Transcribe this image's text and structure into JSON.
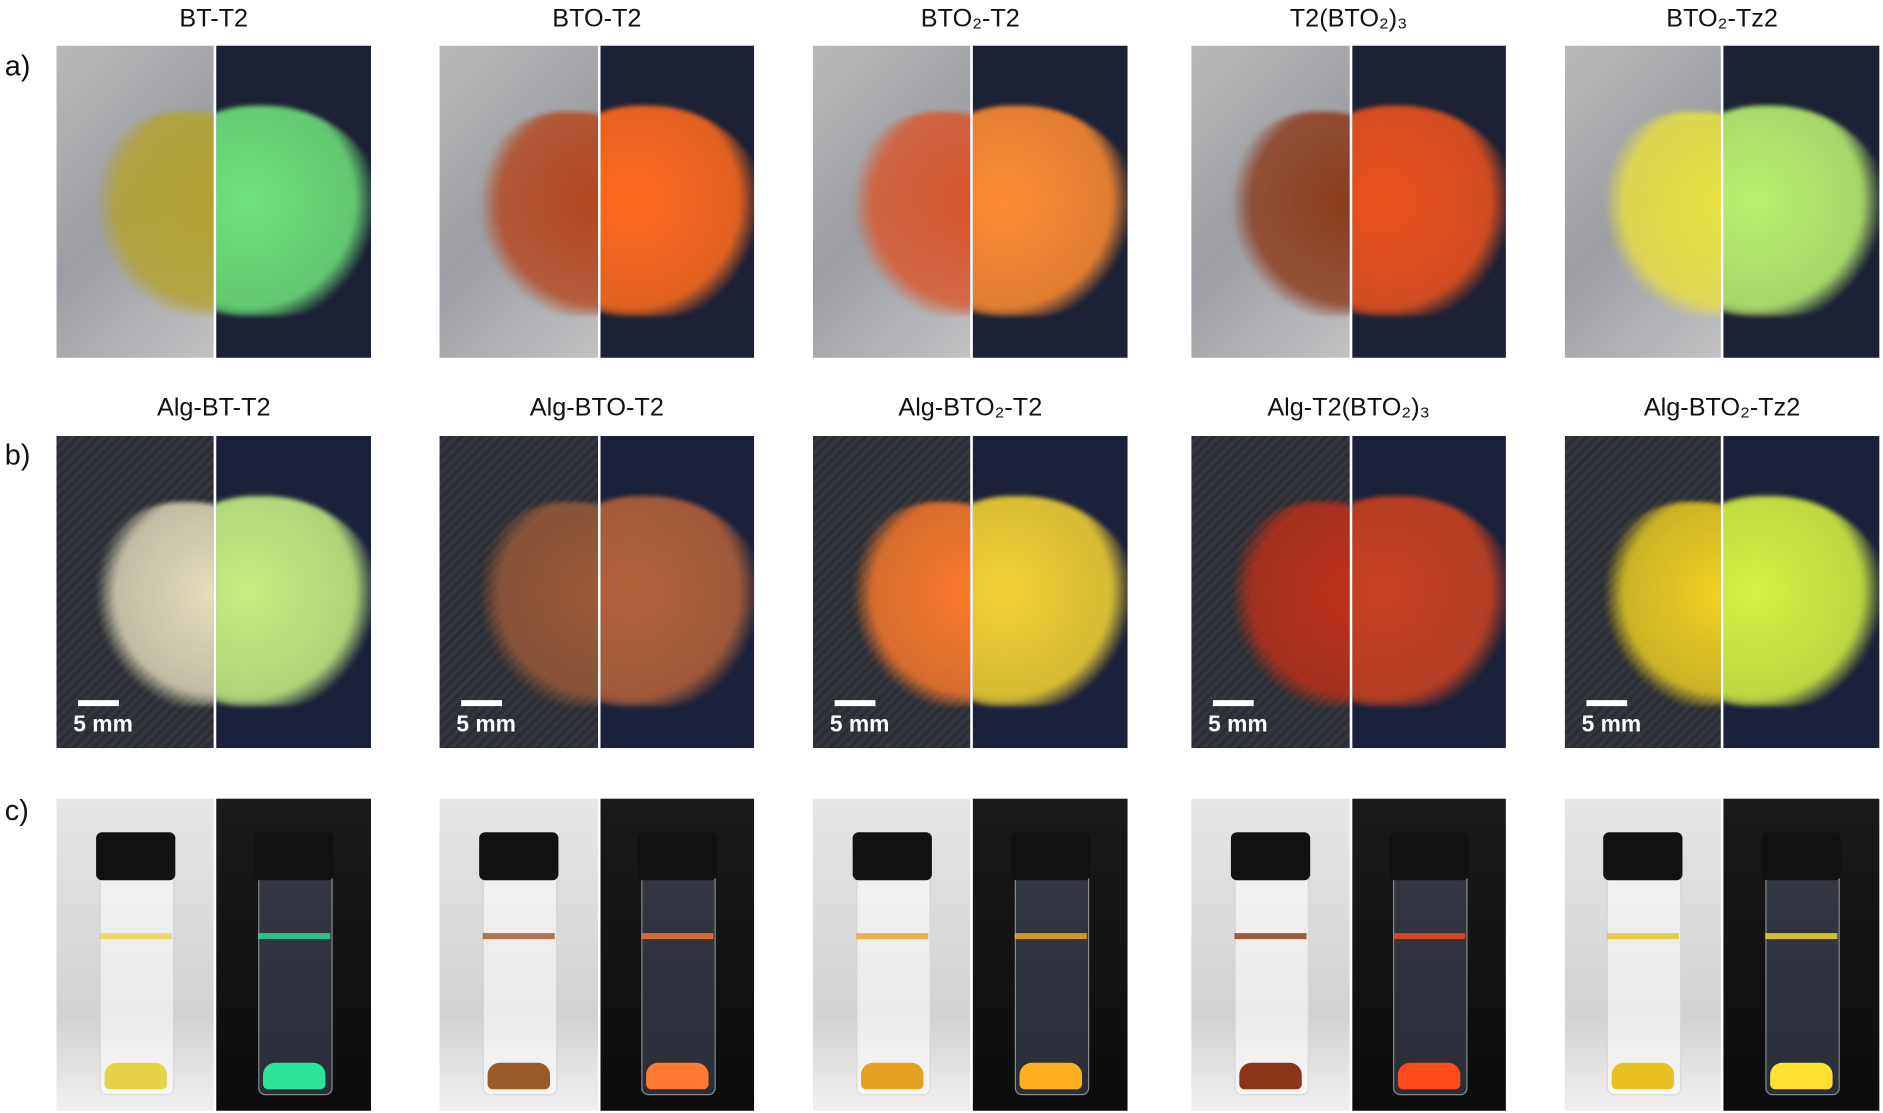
{
  "rows": [
    {
      "label": "a)",
      "titles": [
        "BT-T2",
        "BTO-T2",
        "BTO₂-T2",
        "T2(BTO₂)₃",
        "BTO₂-Tz2"
      ]
    },
    {
      "label": "b)",
      "titles": [
        "Alg-BT-T2",
        "Alg-BTO-T2",
        "Alg-BTO₂-T2",
        "Alg-T2(BTO₂)₃",
        "Alg-BTO₂-Tz2"
      ],
      "scale_labels": [
        "5 mm",
        "5 mm",
        "5 mm",
        "5 mm",
        "5 mm"
      ]
    },
    {
      "label": "c)"
    }
  ]
}
